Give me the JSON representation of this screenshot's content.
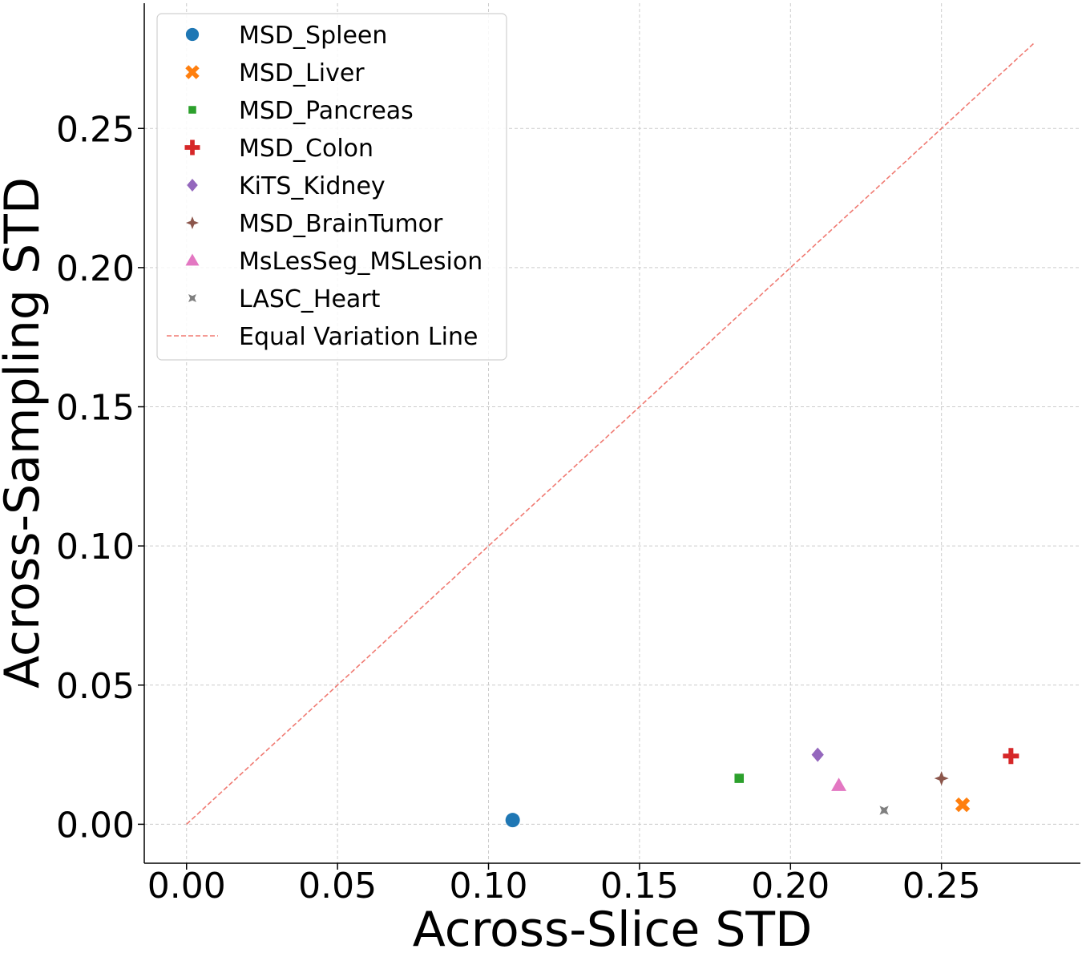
{
  "chart_data": {
    "type": "scatter",
    "title": "",
    "xlabel": "Across-Slice STD",
    "ylabel": "Across-Sampling STD",
    "xlim": [
      -0.014,
      0.296
    ],
    "ylim": [
      -0.014,
      0.295
    ],
    "xticks": [
      0.0,
      0.05,
      0.1,
      0.15,
      0.2,
      0.25
    ],
    "xtick_labels": [
      "0.00",
      "0.05",
      "0.10",
      "0.15",
      "0.20",
      "0.25"
    ],
    "yticks": [
      0.0,
      0.05,
      0.1,
      0.15,
      0.2,
      0.25
    ],
    "ytick_labels": [
      "0.00",
      "0.05",
      "0.10",
      "0.15",
      "0.20",
      "0.25"
    ],
    "grid": true,
    "legend_position": "upper-left",
    "series": [
      {
        "name": "MSD_Spleen",
        "marker": "circle",
        "color": "#1f77b4",
        "x": [
          0.108
        ],
        "y": [
          0.0015
        ]
      },
      {
        "name": "MSD_Liver",
        "marker": "x-thick",
        "color": "#ff7f0e",
        "x": [
          0.257
        ],
        "y": [
          0.007
        ]
      },
      {
        "name": "MSD_Pancreas",
        "marker": "square",
        "color": "#2ca02c",
        "x": [
          0.183
        ],
        "y": [
          0.0165
        ]
      },
      {
        "name": "MSD_Colon",
        "marker": "plus-thick",
        "color": "#d62728",
        "x": [
          0.273
        ],
        "y": [
          0.0245
        ]
      },
      {
        "name": "KiTS_Kidney",
        "marker": "diamond",
        "color": "#9467bd",
        "x": [
          0.209
        ],
        "y": [
          0.025
        ]
      },
      {
        "name": "MSD_BrainTumor",
        "marker": "star4",
        "color": "#8c564b",
        "x": [
          0.25
        ],
        "y": [
          0.0165
        ]
      },
      {
        "name": "MsLesSeg_MSLesion",
        "marker": "triangle-up",
        "color": "#e377c2",
        "x": [
          0.216
        ],
        "y": [
          0.014
        ]
      },
      {
        "name": "LASC_Heart",
        "marker": "star4-x",
        "color": "#7f7f7f",
        "x": [
          0.231
        ],
        "y": [
          0.005
        ]
      }
    ],
    "reference_line": {
      "name": "Equal Variation Line",
      "style": "dashed",
      "color": "#f07a72",
      "x": [
        0.0,
        0.281
      ],
      "y": [
        0.0,
        0.281
      ]
    }
  }
}
